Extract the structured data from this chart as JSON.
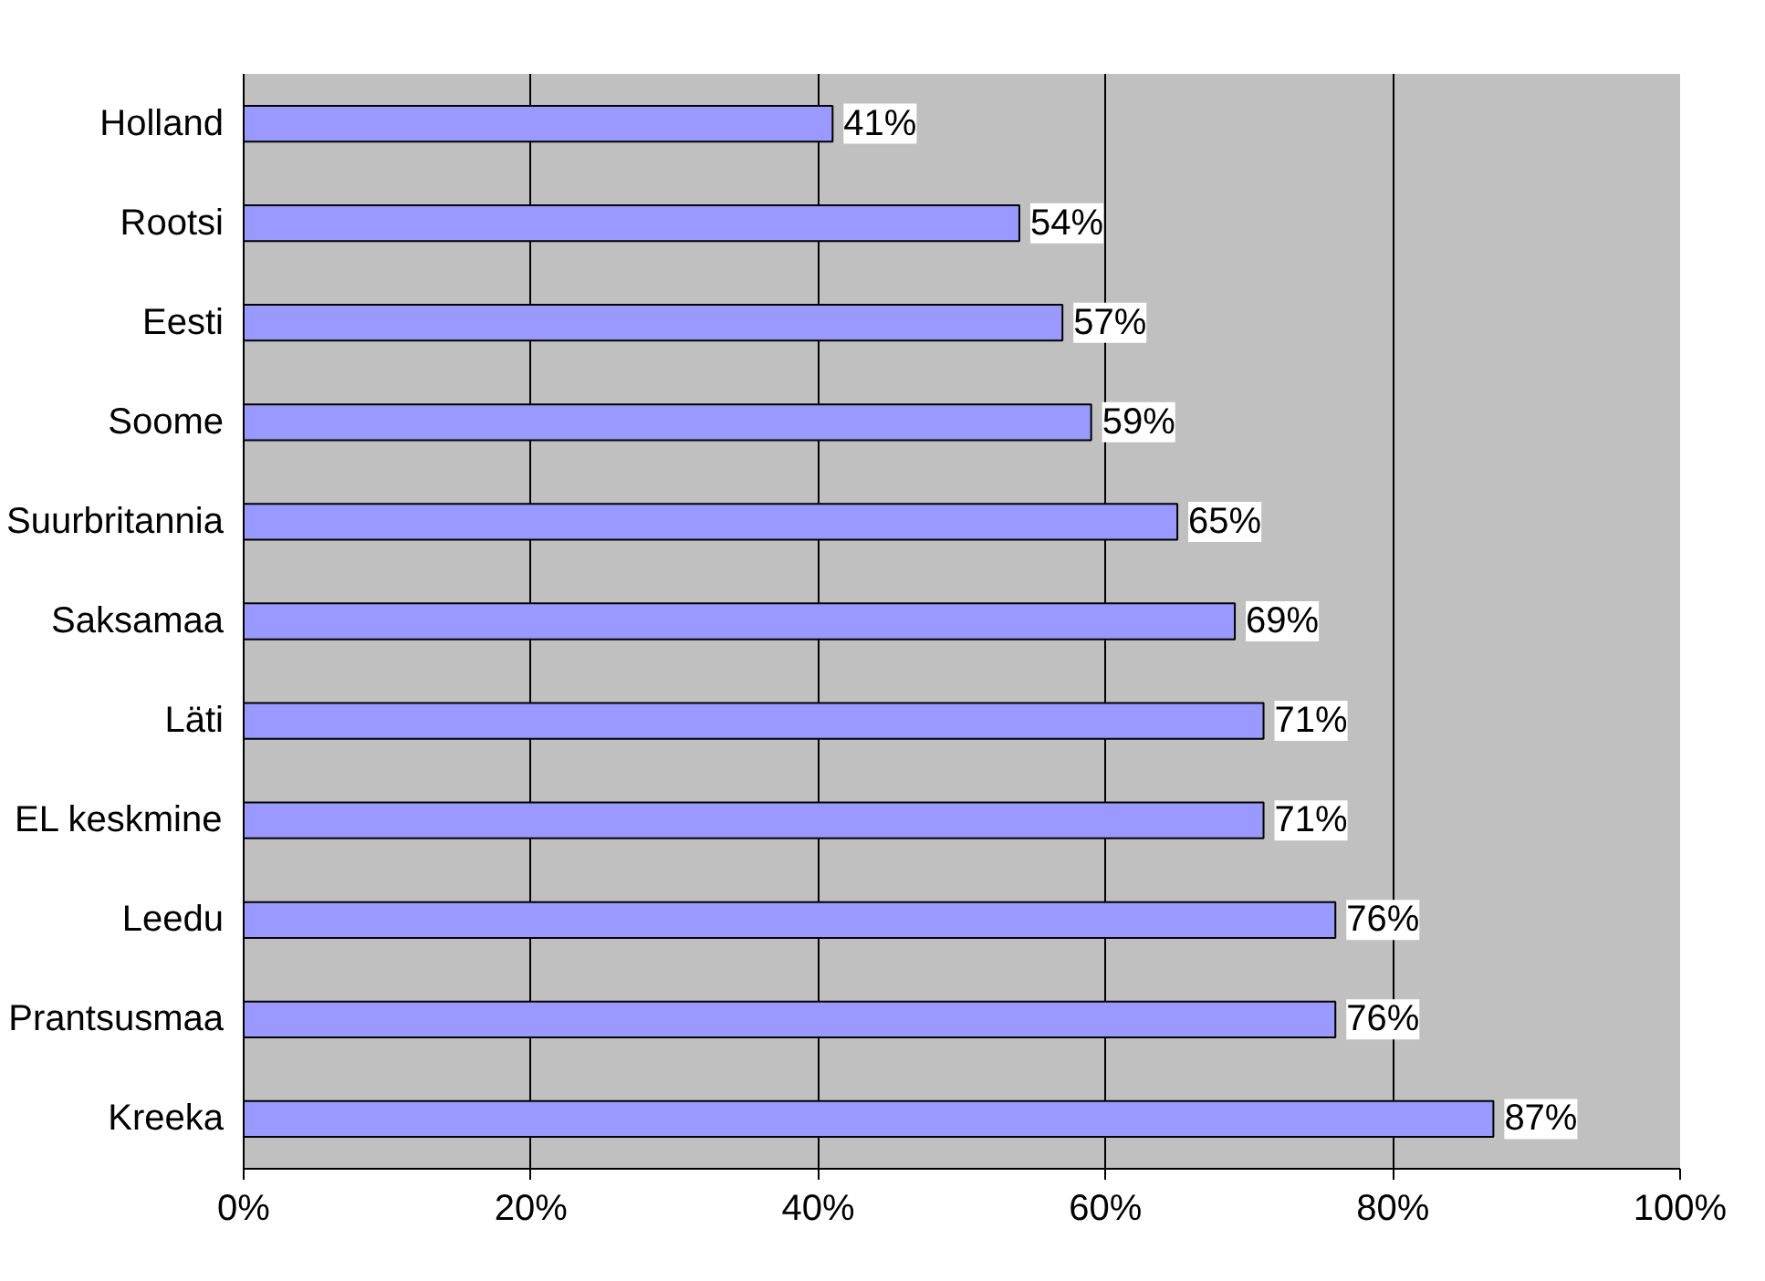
{
  "chart_data": {
    "type": "bar",
    "orientation": "horizontal",
    "categories": [
      "Holland",
      "Rootsi",
      "Eesti",
      "Soome",
      "Suurbritannia",
      "Saksamaa",
      "Läti",
      "EL keskmine",
      "Leedu",
      "Prantsusmaa",
      "Kreeka"
    ],
    "values": [
      41,
      54,
      57,
      59,
      65,
      69,
      71,
      71,
      76,
      76,
      87
    ],
    "value_labels": [
      "41%",
      "54%",
      "57%",
      "59%",
      "65%",
      "69%",
      "71%",
      "71%",
      "76%",
      "76%",
      "87%"
    ],
    "color": "#9999ff",
    "xlim": [
      0,
      100
    ],
    "xticks": [
      {
        "value": 0,
        "label": "0%"
      },
      {
        "value": 20,
        "label": "20%"
      },
      {
        "value": 40,
        "label": "40%"
      },
      {
        "value": 60,
        "label": "60%"
      },
      {
        "value": 80,
        "label": "80%"
      },
      {
        "value": 100,
        "label": "100%"
      }
    ],
    "grid": "x"
  }
}
